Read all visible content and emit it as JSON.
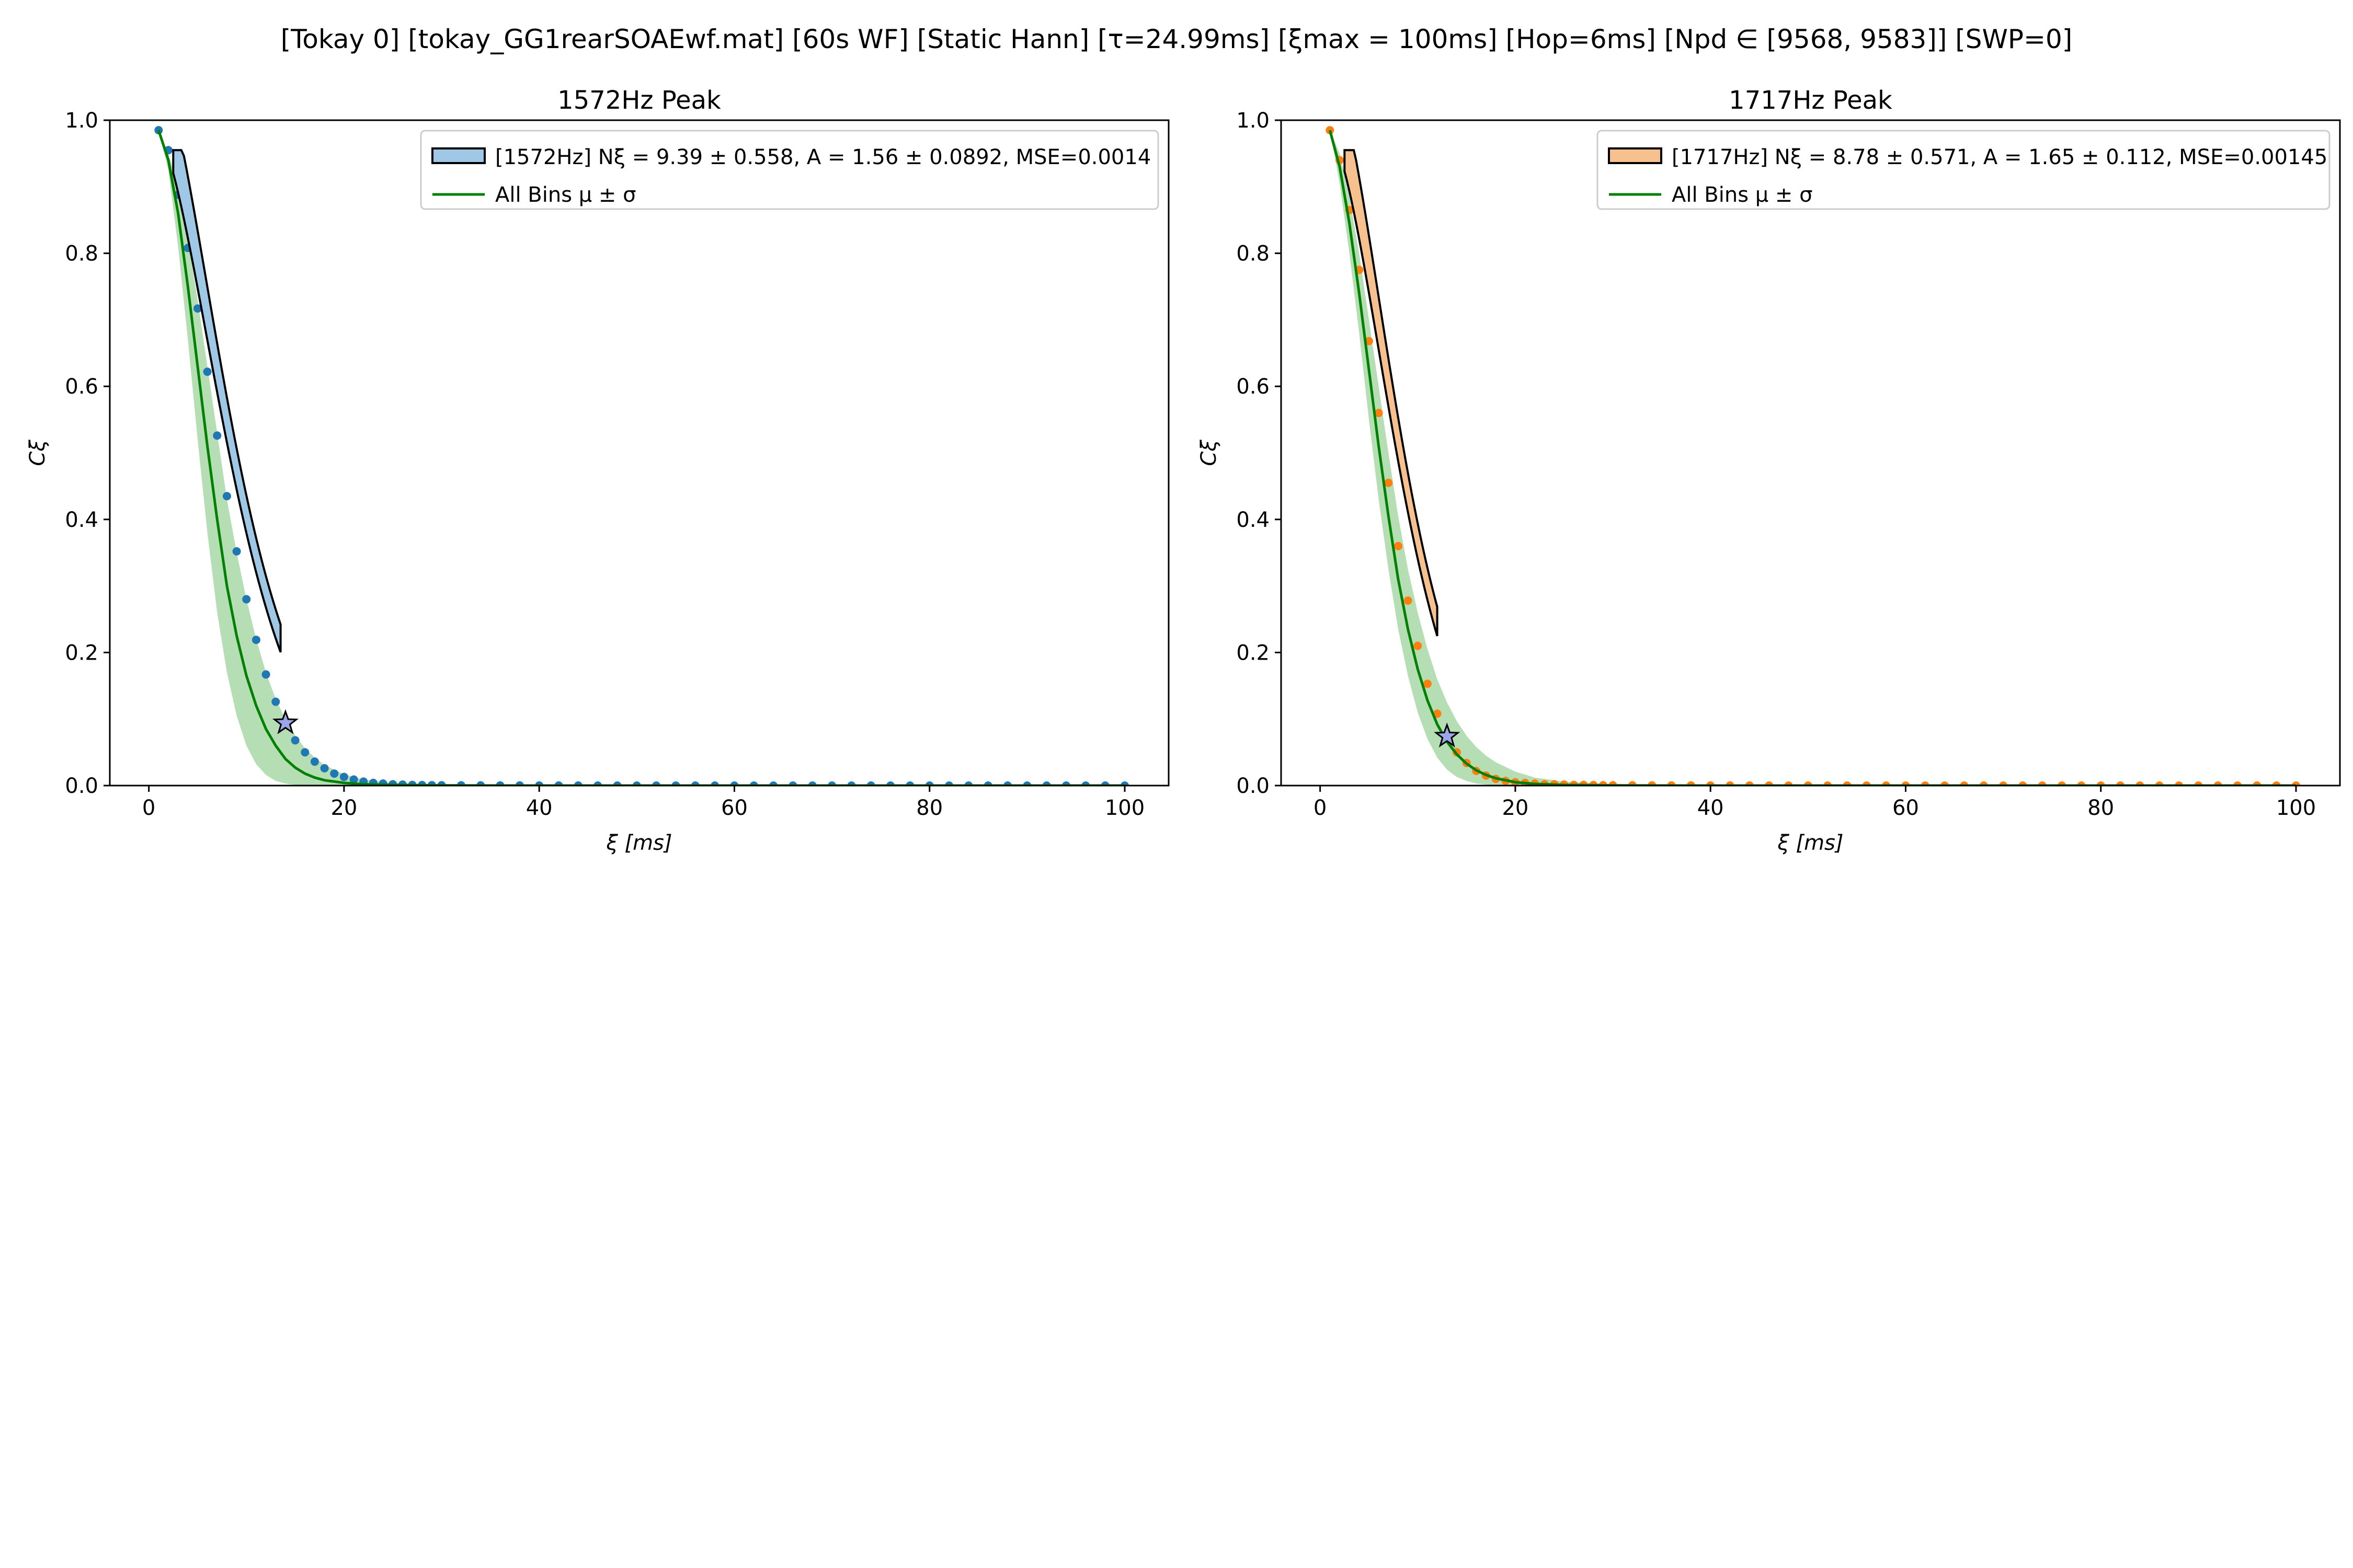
{
  "figure": {
    "suptitle": "[Tokay 0]   [tokay_GG1rearSOAEwf.mat]   [60s WF]   [Static Hann]   [τ=24.99ms]   [ξmax = 100ms]   [Hop=6ms]   [Npd ∈ [9568, 9583]]   [SWP=0]"
  },
  "chart_data": [
    {
      "type": "scatter",
      "title": "1572Hz Peak",
      "xlabel": "ξ [ms]",
      "ylabel": "Cξ",
      "xlim": [
        -4,
        104.5
      ],
      "ylim": [
        0,
        1
      ],
      "xticks": [
        0,
        20,
        40,
        60,
        80,
        100
      ],
      "yticks": [
        0.0,
        0.2,
        0.4,
        0.6,
        0.8,
        1.0
      ],
      "grid": false,
      "legend_position": "top-right",
      "point_color": "#1f77b4",
      "fit_fill": "#9ec8e6",
      "points_x": [
        1,
        2,
        3,
        4,
        5,
        6,
        7,
        8,
        9,
        10,
        11,
        12,
        13,
        14,
        15,
        16,
        17,
        18,
        19,
        20,
        21,
        22,
        23,
        24,
        25,
        26,
        27,
        28,
        29,
        30,
        32,
        34,
        36,
        38,
        40,
        42,
        44,
        46,
        48,
        50,
        52,
        54,
        56,
        58,
        60,
        62,
        64,
        66,
        68,
        70,
        72,
        74,
        76,
        78,
        80,
        82,
        84,
        86,
        88,
        90,
        92,
        94,
        96,
        98,
        100
      ],
      "points_y": [
        0.985,
        0.955,
        0.888,
        0.808,
        0.717,
        0.622,
        0.526,
        0.435,
        0.352,
        0.28,
        0.219,
        0.167,
        0.126,
        0.094,
        0.068,
        0.05,
        0.036,
        0.026,
        0.018,
        0.013,
        0.009,
        0.006,
        0.004,
        0.003,
        0.002,
        0.0015,
        0.001,
        0.0008,
        0.0006,
        0.0005,
        0.0004,
        0.0003,
        0.0002,
        0.0002,
        0.0001,
        0.0001,
        0.0001,
        0,
        0,
        0,
        0,
        0,
        0,
        0,
        0,
        0,
        0,
        0,
        0,
        0,
        0,
        0,
        0,
        0,
        0,
        0,
        0,
        0,
        0,
        0,
        0,
        0,
        0,
        0,
        0
      ],
      "star": {
        "x": 14,
        "y": 0.094
      },
      "fit_x_range": [
        2.5,
        13.5
      ],
      "fit": {
        "N": 9.39,
        "N_err": 0.558,
        "A": 1.56,
        "A_err": 0.0892
      },
      "mean_curve": {
        "x": [
          1,
          2,
          3,
          4,
          5,
          6,
          7,
          8,
          9,
          10,
          11,
          12,
          13,
          14,
          15,
          16,
          17,
          18,
          20,
          22,
          25,
          30,
          35,
          40,
          50,
          60,
          70,
          80,
          90,
          100
        ],
        "y": [
          0.985,
          0.94,
          0.86,
          0.75,
          0.63,
          0.51,
          0.4,
          0.3,
          0.225,
          0.165,
          0.12,
          0.085,
          0.06,
          0.04,
          0.027,
          0.018,
          0.012,
          0.008,
          0.004,
          0.002,
          0.001,
          0.0003,
          0.0001,
          0,
          0,
          0,
          0,
          0,
          0,
          0
        ]
      },
      "band_lower": [
        0.985,
        0.925,
        0.81,
        0.67,
        0.52,
        0.38,
        0.26,
        0.17,
        0.105,
        0.06,
        0.032,
        0.016,
        0.007,
        0.003,
        0.001,
        0.0005,
        0.0002,
        0.0001,
        0,
        0,
        0,
        0,
        0,
        0,
        0,
        0,
        0,
        0,
        0,
        0
      ],
      "band_upper": [
        0.985,
        0.95,
        0.9,
        0.82,
        0.73,
        0.63,
        0.53,
        0.43,
        0.35,
        0.28,
        0.22,
        0.17,
        0.13,
        0.1,
        0.075,
        0.056,
        0.042,
        0.031,
        0.017,
        0.009,
        0.004,
        0.001,
        0.0004,
        0.0002,
        0,
        0,
        0,
        0,
        0,
        0
      ],
      "legend": [
        {
          "kind": "patch",
          "label": "[1572Hz] Nξ = 9.39 ± 0.558, A = 1.56 ± 0.0892, MSE=0.0014"
        },
        {
          "kind": "line",
          "label": "All Bins μ ± σ"
        }
      ]
    },
    {
      "type": "scatter",
      "title": "1717Hz Peak",
      "xlabel": "ξ [ms]",
      "ylabel": "Cξ",
      "xlim": [
        -4,
        104.5
      ],
      "ylim": [
        0,
        1
      ],
      "xticks": [
        0,
        20,
        40,
        60,
        80,
        100
      ],
      "yticks": [
        0.0,
        0.2,
        0.4,
        0.6,
        0.8,
        1.0
      ],
      "grid": false,
      "legend_position": "top-right",
      "point_color": "#ff7f0e",
      "fit_fill": "#f7c08f",
      "points_x": [
        1,
        2,
        3,
        4,
        5,
        6,
        7,
        8,
        9,
        10,
        11,
        12,
        13,
        14,
        15,
        16,
        17,
        18,
        19,
        20,
        21,
        22,
        23,
        24,
        25,
        26,
        27,
        28,
        29,
        30,
        32,
        34,
        36,
        38,
        40,
        42,
        44,
        46,
        48,
        50,
        52,
        54,
        56,
        58,
        60,
        62,
        64,
        66,
        68,
        70,
        72,
        74,
        76,
        78,
        80,
        82,
        84,
        86,
        88,
        90,
        92,
        94,
        96,
        98,
        100
      ],
      "points_y": [
        0.985,
        0.94,
        0.865,
        0.775,
        0.668,
        0.56,
        0.455,
        0.36,
        0.278,
        0.21,
        0.153,
        0.108,
        0.074,
        0.05,
        0.034,
        0.022,
        0.015,
        0.01,
        0.007,
        0.005,
        0.004,
        0.003,
        0.002,
        0.002,
        0.0015,
        0.001,
        0.001,
        0.0008,
        0.0006,
        0.0005,
        0.0004,
        0.0003,
        0.0002,
        0.0002,
        0.0001,
        0.0001,
        0.0001,
        0,
        0,
        0,
        0,
        0,
        0,
        0,
        0,
        0,
        0,
        0,
        0,
        0,
        0,
        0,
        0,
        0,
        0,
        0,
        0,
        0,
        0,
        0,
        0,
        0,
        0,
        0,
        0
      ],
      "star": {
        "x": 13,
        "y": 0.074
      },
      "fit_x_range": [
        2.5,
        12
      ],
      "fit": {
        "N": 8.78,
        "N_err": 0.571,
        "A": 1.65,
        "A_err": 0.112
      },
      "mean_curve": {
        "x": [
          1,
          2,
          3,
          4,
          5,
          6,
          7,
          8,
          9,
          10,
          11,
          12,
          13,
          14,
          15,
          16,
          17,
          18,
          20,
          22,
          25,
          30,
          35,
          40,
          50,
          60,
          70,
          80,
          90,
          100
        ],
        "y": [
          0.985,
          0.93,
          0.845,
          0.74,
          0.625,
          0.51,
          0.405,
          0.31,
          0.235,
          0.175,
          0.128,
          0.092,
          0.066,
          0.047,
          0.033,
          0.023,
          0.016,
          0.011,
          0.005,
          0.0025,
          0.001,
          0.0003,
          0.0001,
          0,
          0,
          0,
          0,
          0,
          0,
          0
        ]
      },
      "band_lower": [
        0.985,
        0.905,
        0.8,
        0.68,
        0.55,
        0.43,
        0.325,
        0.235,
        0.165,
        0.11,
        0.07,
        0.042,
        0.024,
        0.013,
        0.007,
        0.003,
        0.0015,
        0.0005,
        0.0001,
        0,
        0,
        0,
        0,
        0,
        0,
        0,
        0,
        0,
        0,
        0
      ],
      "band_upper": [
        0.985,
        0.95,
        0.885,
        0.8,
        0.7,
        0.6,
        0.5,
        0.405,
        0.325,
        0.26,
        0.205,
        0.16,
        0.125,
        0.097,
        0.075,
        0.058,
        0.045,
        0.035,
        0.021,
        0.012,
        0.006,
        0.002,
        0.0008,
        0.0003,
        0,
        0,
        0,
        0,
        0,
        0
      ],
      "legend": [
        {
          "kind": "patch",
          "label": "[1717Hz] Nξ = 8.78 ± 0.571, A = 1.65 ± 0.112, MSE=0.00145"
        },
        {
          "kind": "line",
          "label": "All Bins μ ± σ"
        }
      ]
    }
  ]
}
